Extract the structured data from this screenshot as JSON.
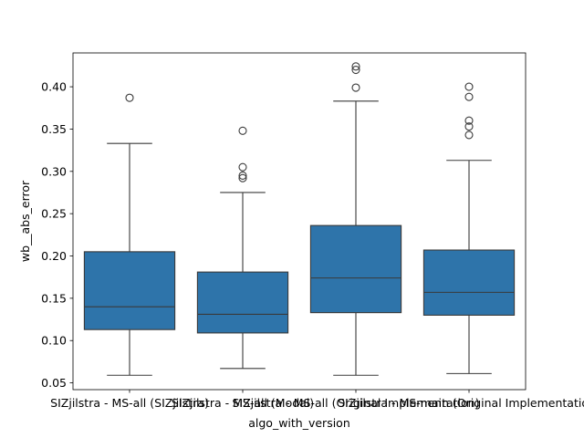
{
  "chart_data": {
    "type": "box",
    "title": "",
    "xlabel": "algo_with_version",
    "ylabel": "wb__abs_error",
    "ylim": [
      0.042,
      0.44
    ],
    "yticks": [
      0.05,
      0.1,
      0.15,
      0.2,
      0.25,
      0.3,
      0.35,
      0.4
    ],
    "ytick_labels": [
      "0.05",
      "0.10",
      "0.15",
      "0.20",
      "0.25",
      "0.30",
      "0.35",
      "0.40"
    ],
    "grid": false,
    "legend": "none",
    "box_color": "#2e74aa",
    "line_color": "#3a3a3a",
    "categories": [
      "SIZjilstra - MS-all (SIZjilstra)",
      "SIZjilstra - MS-all (Modal)",
      "SIZjilstra - MS-all (Original Implementation)",
      "SIZjilstra - MS-main (Original Implementation)"
    ],
    "category_labels": [
      "SIZjilstra - MS-all (SIZjilstra)",
      "SIZjilstra - MS-all (Modal)",
      "SIZjilstra - MS-all (Original Implementation)",
      "SIZjilstra - MS-main (Original Implementation)"
    ],
    "boxes": [
      {
        "whisker_low": 0.059,
        "q1": 0.113,
        "median": 0.14,
        "q3": 0.205,
        "whisker_high": 0.333,
        "outliers": [
          0.387
        ]
      },
      {
        "whisker_low": 0.067,
        "q1": 0.109,
        "median": 0.131,
        "q3": 0.181,
        "whisker_high": 0.275,
        "outliers": [
          0.292,
          0.295,
          0.305,
          0.348
        ]
      },
      {
        "whisker_low": 0.059,
        "q1": 0.133,
        "median": 0.174,
        "q3": 0.236,
        "whisker_high": 0.383,
        "outliers": [
          0.399,
          0.42,
          0.424
        ]
      },
      {
        "whisker_low": 0.061,
        "q1": 0.13,
        "median": 0.157,
        "q3": 0.207,
        "whisker_high": 0.313,
        "outliers": [
          0.343,
          0.353,
          0.36,
          0.388,
          0.4
        ]
      }
    ]
  }
}
